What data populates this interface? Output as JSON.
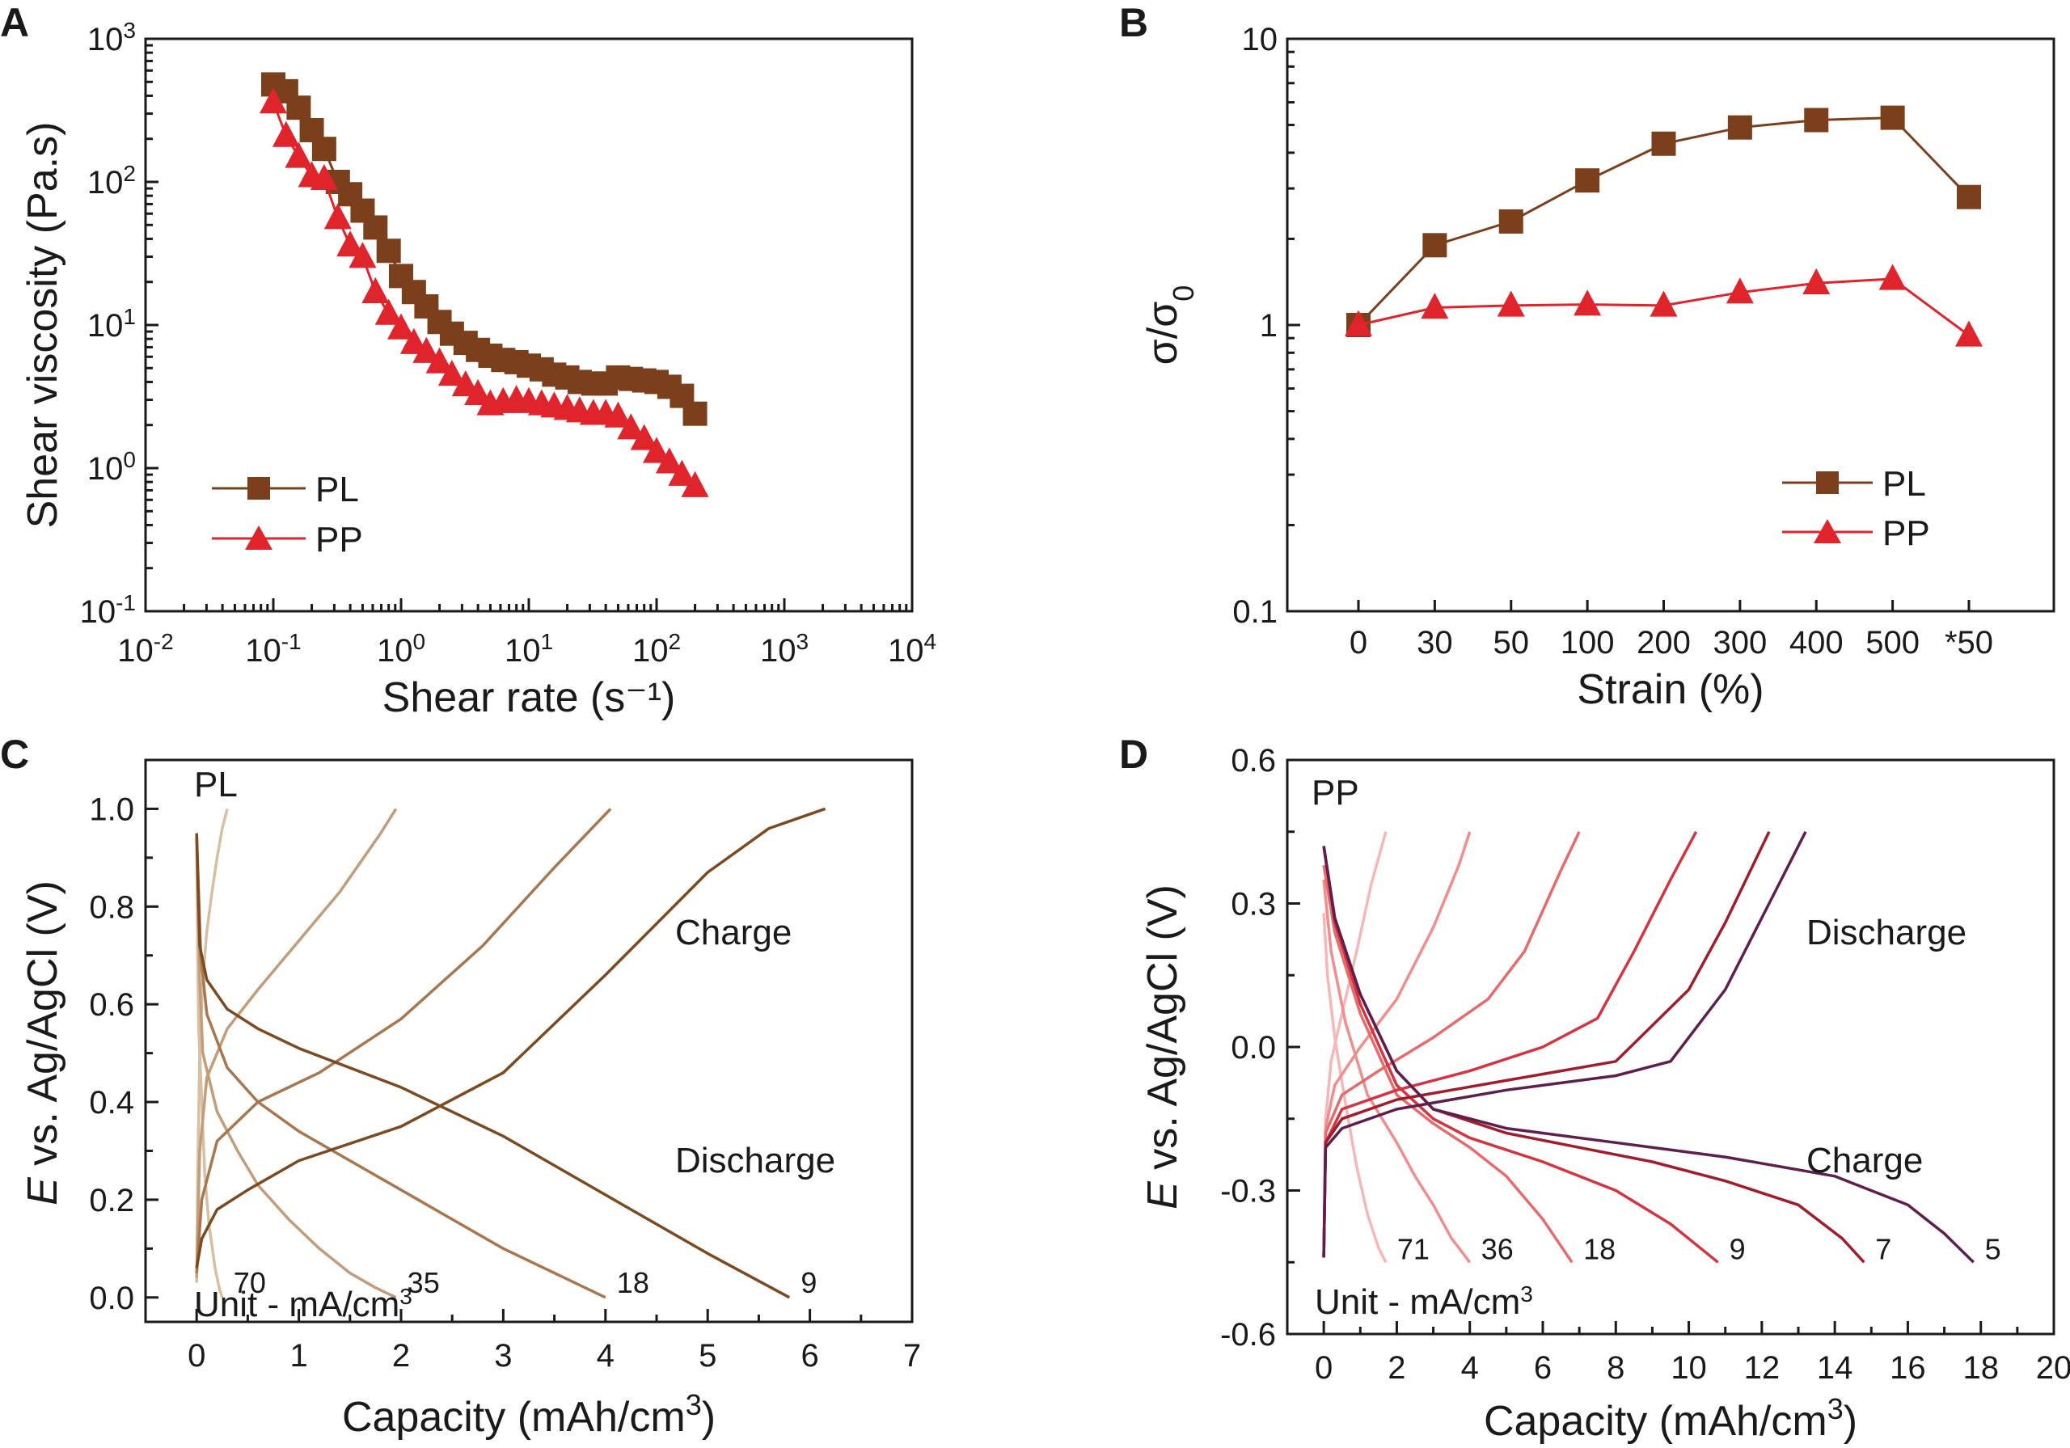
{
  "colors": {
    "PL": "#7b3f1c",
    "PP": "#e0242b",
    "PL_rates": [
      "#d7bfa4",
      "#c39c7a",
      "#a8774f",
      "#7b4a21"
    ],
    "PP_rates": [
      "#f6b7b7",
      "#f08e8e",
      "#e66c6c",
      "#d4343f",
      "#a01d2b",
      "#5e1f4e"
    ]
  },
  "chart_data": [
    {
      "panel": "A",
      "type": "scatter",
      "xscale": "log",
      "yscale": "log",
      "xlim": [
        0.01,
        10000
      ],
      "ylim": [
        0.1,
        1000
      ],
      "xlabel": "Shear rate (s⁻¹)",
      "ylabel": "Shear viscosity (Pa.s)",
      "xticks": [
        {
          "base": "10",
          "exp": "-2"
        },
        {
          "base": "10",
          "exp": "-1"
        },
        {
          "base": "10",
          "exp": "0"
        },
        {
          "base": "10",
          "exp": "1"
        },
        {
          "base": "10",
          "exp": "2"
        },
        {
          "base": "10",
          "exp": "3"
        },
        {
          "base": "10",
          "exp": "4"
        }
      ],
      "yticks": [
        {
          "base": "10",
          "exp": "-1"
        },
        {
          "base": "10",
          "exp": "0"
        },
        {
          "base": "10",
          "exp": "1"
        },
        {
          "base": "10",
          "exp": "2"
        },
        {
          "base": "10",
          "exp": "3"
        }
      ],
      "legend": {
        "position": "bottom-left",
        "entries": [
          "PL",
          "PP"
        ]
      },
      "series": [
        {
          "name": "PL",
          "marker": "square",
          "x": [
            0.1,
            0.126,
            0.158,
            0.2,
            0.25,
            0.32,
            0.4,
            0.5,
            0.63,
            0.8,
            1.0,
            1.26,
            1.58,
            2.0,
            2.5,
            3.2,
            4.0,
            5.0,
            6.3,
            8.0,
            10,
            12.6,
            15.8,
            20,
            25,
            32,
            40,
            50,
            63,
            80,
            100,
            126,
            158,
            200
          ],
          "y": [
            480,
            430,
            330,
            230,
            170,
            100,
            82,
            63,
            48,
            33,
            22,
            17,
            13.5,
            10.5,
            8.7,
            7.5,
            6.7,
            6.1,
            5.7,
            5.5,
            5.2,
            4.9,
            4.5,
            4.3,
            4.0,
            3.9,
            3.9,
            4.3,
            4.2,
            4.1,
            4.0,
            3.7,
            3.2,
            2.4
          ]
        },
        {
          "name": "PP",
          "marker": "triangle",
          "x": [
            0.1,
            0.126,
            0.158,
            0.2,
            0.25,
            0.32,
            0.4,
            0.5,
            0.63,
            0.8,
            1.0,
            1.26,
            1.58,
            2.0,
            2.5,
            3.2,
            4.0,
            5.0,
            6.3,
            8.0,
            10,
            12.6,
            15.8,
            20,
            25,
            32,
            40,
            50,
            63,
            80,
            100,
            126,
            158,
            200
          ],
          "y": [
            360,
            210,
            150,
            110,
            105,
            56,
            36,
            30,
            17,
            12,
            9.5,
            7.5,
            6.5,
            5.5,
            4.5,
            3.8,
            3.3,
            2.8,
            2.9,
            3.0,
            2.9,
            2.8,
            2.7,
            2.6,
            2.5,
            2.4,
            2.4,
            2.3,
            1.9,
            1.6,
            1.3,
            1.1,
            0.9,
            0.75
          ]
        }
      ]
    },
    {
      "panel": "B",
      "type": "line",
      "yscale": "log",
      "ylim": [
        0.1,
        10
      ],
      "categories": [
        "0",
        "30",
        "50",
        "100",
        "200",
        "300",
        "400",
        "500",
        "*50"
      ],
      "xlabel": "Strain (%)",
      "ylabel": {
        "base": "σ/σ",
        "sub": "0"
      },
      "yticks": [
        "0.1",
        "1",
        "10"
      ],
      "legend": {
        "position": "bottom-right",
        "entries": [
          "PL",
          "PP"
        ]
      },
      "series": [
        {
          "name": "PL",
          "marker": "square",
          "values": [
            1.0,
            1.9,
            2.3,
            3.2,
            4.3,
            4.9,
            5.2,
            5.3,
            2.8
          ]
        },
        {
          "name": "PP",
          "marker": "triangle",
          "values": [
            1.0,
            1.15,
            1.17,
            1.18,
            1.17,
            1.3,
            1.4,
            1.45,
            0.92
          ]
        }
      ]
    },
    {
      "panel": "C",
      "type": "line",
      "xlim": [
        -0.5,
        7
      ],
      "ylim": [
        -0.05,
        1.1
      ],
      "xticks": [
        "0",
        "1",
        "2",
        "3",
        "4",
        "5",
        "6",
        "7"
      ],
      "yticks": [
        "0.0",
        "0.2",
        "0.4",
        "0.6",
        "0.8",
        "1.0"
      ],
      "xlabel_main": "Capacity (mAh/cm",
      "xlabel_sup": "3",
      "xlabel_end": ")",
      "ylabel_italic": "E",
      "ylabel_rest": " vs. Ag/AgCl (V)",
      "annotations": {
        "title": "PL",
        "charge": "Charge",
        "discharge": "Discharge",
        "unit_main": "Unit - mA/cm",
        "unit_sup": "3"
      },
      "rate_labels": [
        "70",
        "35",
        "18",
        "9"
      ],
      "series": [
        {
          "name": "70",
          "type": "charge",
          "x": [
            0.0,
            0.01,
            0.03,
            0.06,
            0.1,
            0.15,
            0.2,
            0.25,
            0.3
          ],
          "y": [
            0.03,
            0.25,
            0.5,
            0.65,
            0.75,
            0.83,
            0.9,
            0.96,
            1.0
          ]
        },
        {
          "name": "70",
          "type": "discharge",
          "x": [
            0.0,
            0.01,
            0.02,
            0.04,
            0.06,
            0.08,
            0.12,
            0.18,
            0.22,
            0.25
          ],
          "y": [
            0.95,
            0.7,
            0.55,
            0.45,
            0.35,
            0.25,
            0.15,
            0.06,
            0.02,
            0.0
          ]
        },
        {
          "name": "35",
          "type": "charge",
          "x": [
            0.0,
            0.03,
            0.1,
            0.3,
            0.6,
            1.0,
            1.4,
            1.8,
            1.95
          ],
          "y": [
            0.04,
            0.3,
            0.45,
            0.55,
            0.63,
            0.73,
            0.83,
            0.95,
            1.0
          ]
        },
        {
          "name": "35",
          "type": "discharge",
          "x": [
            0.0,
            0.03,
            0.06,
            0.2,
            0.4,
            0.6,
            0.9,
            1.2,
            1.5,
            1.75,
            1.95
          ],
          "y": [
            0.94,
            0.65,
            0.5,
            0.38,
            0.3,
            0.23,
            0.16,
            0.1,
            0.05,
            0.02,
            0.0
          ]
        },
        {
          "name": "18",
          "type": "charge",
          "x": [
            0.0,
            0.05,
            0.2,
            0.6,
            1.2,
            2.0,
            2.8,
            3.5,
            4.05
          ],
          "y": [
            0.05,
            0.2,
            0.32,
            0.4,
            0.46,
            0.57,
            0.72,
            0.88,
            1.0
          ]
        },
        {
          "name": "18",
          "type": "discharge",
          "x": [
            0.0,
            0.04,
            0.1,
            0.3,
            0.6,
            1.0,
            1.5,
            2.0,
            2.5,
            3.0,
            3.5,
            4.0
          ],
          "y": [
            0.95,
            0.7,
            0.58,
            0.47,
            0.4,
            0.34,
            0.28,
            0.22,
            0.16,
            0.1,
            0.05,
            0.0
          ]
        },
        {
          "name": "9",
          "type": "charge",
          "x": [
            0.0,
            0.05,
            0.2,
            0.5,
            1.0,
            2.0,
            3.0,
            4.0,
            5.0,
            5.6,
            6.15
          ],
          "y": [
            0.06,
            0.12,
            0.18,
            0.22,
            0.28,
            0.35,
            0.46,
            0.66,
            0.87,
            0.96,
            1.0
          ]
        },
        {
          "name": "9",
          "type": "discharge",
          "x": [
            0.0,
            0.03,
            0.1,
            0.3,
            0.6,
            1.0,
            2.0,
            3.0,
            4.0,
            5.0,
            5.8
          ],
          "y": [
            0.95,
            0.72,
            0.65,
            0.59,
            0.55,
            0.51,
            0.43,
            0.33,
            0.21,
            0.09,
            0.0
          ]
        }
      ]
    },
    {
      "panel": "D",
      "type": "line",
      "xlim": [
        -1,
        20
      ],
      "ylim": [
        -0.6,
        0.6
      ],
      "xticks": [
        "0",
        "2",
        "4",
        "6",
        "8",
        "10",
        "12",
        "14",
        "16",
        "18",
        "20"
      ],
      "yticks": [
        "-0.6",
        "-0.3",
        "0.0",
        "0.3",
        "0.6"
      ],
      "xlabel_main": "Capacity (mAh/cm",
      "xlabel_sup": "3",
      "xlabel_end": ")",
      "ylabel_italic": "E",
      "ylabel_rest": " vs. Ag/AgCl (V)",
      "annotations": {
        "title": "PP",
        "charge": "Charge",
        "discharge": "Discharge",
        "unit_main": "Unit - mA/cm",
        "unit_sup": "3"
      },
      "rate_labels": [
        "71",
        "36",
        "18",
        "9",
        "7",
        "5"
      ],
      "series": [
        {
          "name": "71",
          "type": "charge",
          "x": [
            0.0,
            0.05,
            0.2,
            0.5,
            0.9,
            1.3,
            1.7
          ],
          "y": [
            -0.44,
            -0.15,
            -0.03,
            0.07,
            0.2,
            0.34,
            0.45
          ]
        },
        {
          "name": "71",
          "type": "discharge",
          "x": [
            0.0,
            0.1,
            0.3,
            0.6,
            0.9,
            1.2,
            1.5,
            1.7
          ],
          "y": [
            0.28,
            0.15,
            0.02,
            -0.12,
            -0.25,
            -0.35,
            -0.42,
            -0.45
          ]
        },
        {
          "name": "36",
          "type": "charge",
          "x": [
            0.0,
            0.05,
            0.3,
            1.0,
            2.0,
            3.0,
            3.7,
            4.0
          ],
          "y": [
            -0.44,
            -0.17,
            -0.08,
            0.0,
            0.1,
            0.25,
            0.38,
            0.45
          ]
        },
        {
          "name": "36",
          "type": "discharge",
          "x": [
            0.0,
            0.2,
            0.6,
            1.2,
            2.0,
            2.5,
            3.0,
            3.5,
            4.0
          ],
          "y": [
            0.35,
            0.2,
            0.05,
            -0.1,
            -0.2,
            -0.27,
            -0.33,
            -0.4,
            -0.45
          ]
        },
        {
          "name": "18",
          "type": "charge",
          "x": [
            0.0,
            0.05,
            0.5,
            1.5,
            3.0,
            4.5,
            5.5,
            6.5,
            7.0
          ],
          "y": [
            -0.44,
            -0.18,
            -0.1,
            -0.05,
            0.02,
            0.1,
            0.2,
            0.37,
            0.45
          ]
        },
        {
          "name": "18",
          "type": "discharge",
          "x": [
            0.0,
            0.3,
            1.0,
            2.0,
            3.0,
            4.0,
            5.0,
            6.0,
            6.8
          ],
          "y": [
            0.38,
            0.24,
            0.07,
            -0.1,
            -0.16,
            -0.21,
            -0.27,
            -0.36,
            -0.45
          ]
        },
        {
          "name": "9",
          "type": "charge",
          "x": [
            0.0,
            0.05,
            0.5,
            2.0,
            4.0,
            6.0,
            7.5,
            8.5,
            9.5,
            10.2
          ],
          "y": [
            -0.44,
            -0.2,
            -0.13,
            -0.09,
            -0.05,
            0.0,
            0.06,
            0.2,
            0.35,
            0.45
          ]
        },
        {
          "name": "9",
          "type": "discharge",
          "x": [
            0.0,
            0.3,
            1.0,
            2.0,
            3.0,
            4.0,
            6.0,
            8.0,
            9.5,
            10.8
          ],
          "y": [
            0.42,
            0.26,
            0.09,
            -0.08,
            -0.15,
            -0.19,
            -0.24,
            -0.3,
            -0.37,
            -0.45
          ]
        },
        {
          "name": "7",
          "type": "charge",
          "x": [
            0.0,
            0.05,
            0.5,
            2.0,
            5.0,
            8.0,
            10.0,
            11.0,
            12.2
          ],
          "y": [
            -0.44,
            -0.2,
            -0.15,
            -0.11,
            -0.07,
            -0.03,
            0.12,
            0.26,
            0.45
          ]
        },
        {
          "name": "7",
          "type": "discharge",
          "x": [
            0.0,
            0.3,
            1.0,
            2.0,
            3.0,
            5.0,
            7.0,
            9.0,
            11.0,
            13.0,
            14.2,
            14.8
          ],
          "y": [
            0.42,
            0.27,
            0.11,
            -0.05,
            -0.13,
            -0.18,
            -0.21,
            -0.24,
            -0.28,
            -0.33,
            -0.4,
            -0.45
          ]
        },
        {
          "name": "5",
          "type": "charge",
          "x": [
            0.0,
            0.05,
            0.5,
            2.0,
            5.0,
            8.0,
            9.5,
            11.0,
            12.2,
            13.2
          ],
          "y": [
            -0.44,
            -0.21,
            -0.17,
            -0.13,
            -0.09,
            -0.06,
            -0.03,
            0.12,
            0.3,
            0.45
          ]
        },
        {
          "name": "5",
          "type": "discharge",
          "x": [
            0.0,
            0.3,
            1.0,
            2.0,
            3.0,
            5.0,
            8.0,
            11.0,
            14.0,
            16.0,
            17.0,
            17.8
          ],
          "y": [
            0.42,
            0.27,
            0.11,
            -0.05,
            -0.13,
            -0.17,
            -0.2,
            -0.23,
            -0.27,
            -0.33,
            -0.39,
            -0.45
          ]
        }
      ]
    }
  ]
}
